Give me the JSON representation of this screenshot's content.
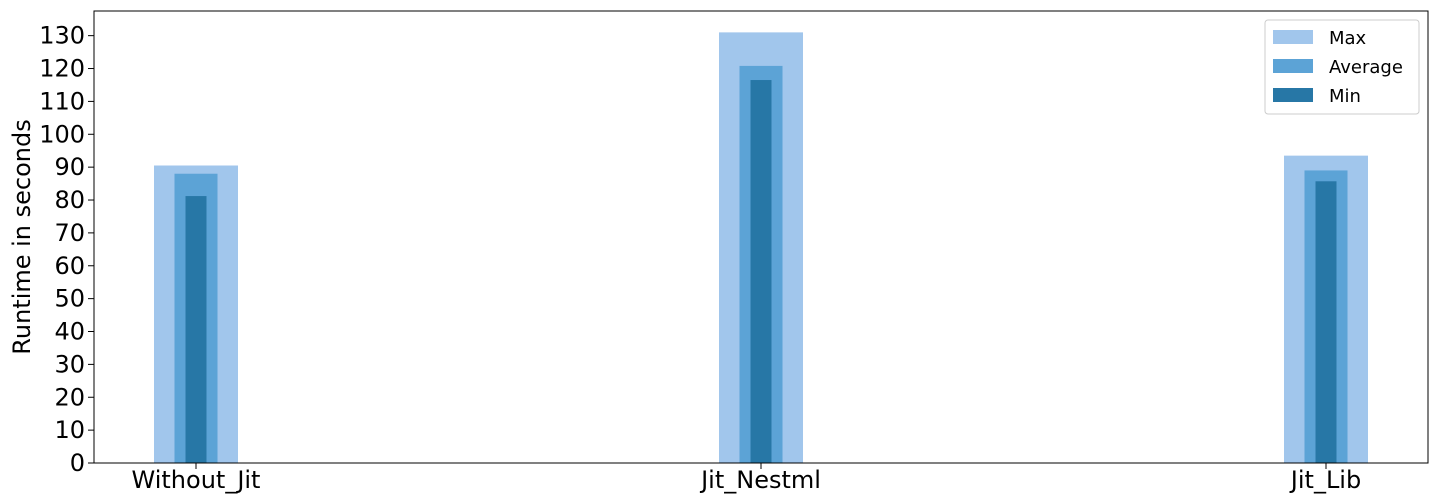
{
  "chart_data": {
    "type": "bar",
    "title": "",
    "xlabel": "",
    "ylabel": "Runtime in seconds",
    "categories": [
      "Without_Jit",
      "Jit_Nestml",
      "Jit_Lib"
    ],
    "series": [
      {
        "name": "Max",
        "values": [
          90.5,
          131.0,
          93.5
        ],
        "color": "#a1c6ec"
      },
      {
        "name": "Average",
        "values": [
          88.0,
          120.8,
          89.0
        ],
        "color": "#5ca3d6"
      },
      {
        "name": "Min",
        "values": [
          81.2,
          116.5,
          85.7
        ],
        "color": "#2777a6"
      }
    ],
    "ylim": [
      0,
      137.5
    ],
    "yticks": [
      0,
      10,
      20,
      30,
      40,
      50,
      60,
      70,
      80,
      90,
      100,
      110,
      120,
      130
    ],
    "grid": false,
    "legend_position": "top-right"
  }
}
